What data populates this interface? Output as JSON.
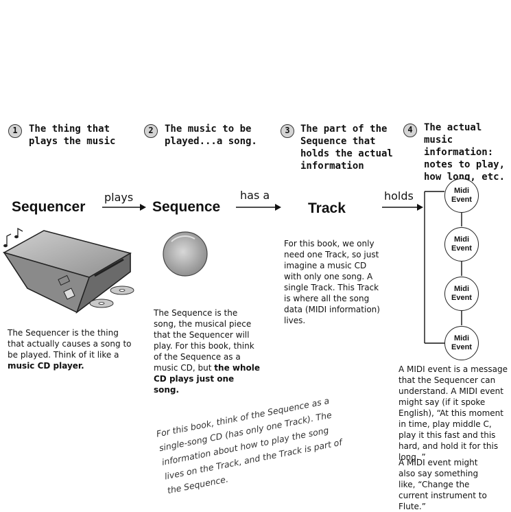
{
  "steps": [
    {
      "num": "1",
      "text": "The thing that\nplays the music"
    },
    {
      "num": "2",
      "text": "The music to be\nplayed...a song."
    },
    {
      "num": "3",
      "text": "The part of the\nSequence that\nholds the actual\ninformation"
    },
    {
      "num": "4",
      "text": "The actual music\ninformation:\nnotes to play,\nhow long, etc."
    }
  ],
  "nodes": {
    "sequencer": "Sequencer",
    "sequence": "Sequence",
    "track": "Track"
  },
  "relations": {
    "plays": "plays",
    "has_a": "has a",
    "holds": "holds"
  },
  "midi_events": [
    "Midi\nEvent",
    "Midi\nEvent",
    "Midi\nEvent",
    "Midi\nEvent"
  ],
  "descriptions": {
    "sequencer_pre": "The Sequencer is the thing that actually causes a song to be played. Think of it like a ",
    "sequencer_bold": "music CD player.",
    "sequence_pre": "The Sequence is the song, the musical piece that the Sequencer will play. For this book, think of the Sequence as a music CD, but ",
    "sequence_bold": "the whole CD plays just one song.",
    "track": "For this book, we only need one Track, so just imagine a music CD with only one song. A single Track. This Track is where all the song data (MIDI information) lives.",
    "midi_1": "A MIDI event is a message that the Sequencer can understand. A MIDI event might say (if it spoke English), “At this moment in time, play middle C, play it this fast and this hard, and hold it for this long. ”",
    "midi_2": "A MIDI event might also say something like, “Change the current instrument to Flute.”"
  },
  "handwritten_note": "For this book, think of the Sequence as a single-song CD (has only one Track). The information about how to play the song lives on the Track, and the Track is part of the Sequence."
}
